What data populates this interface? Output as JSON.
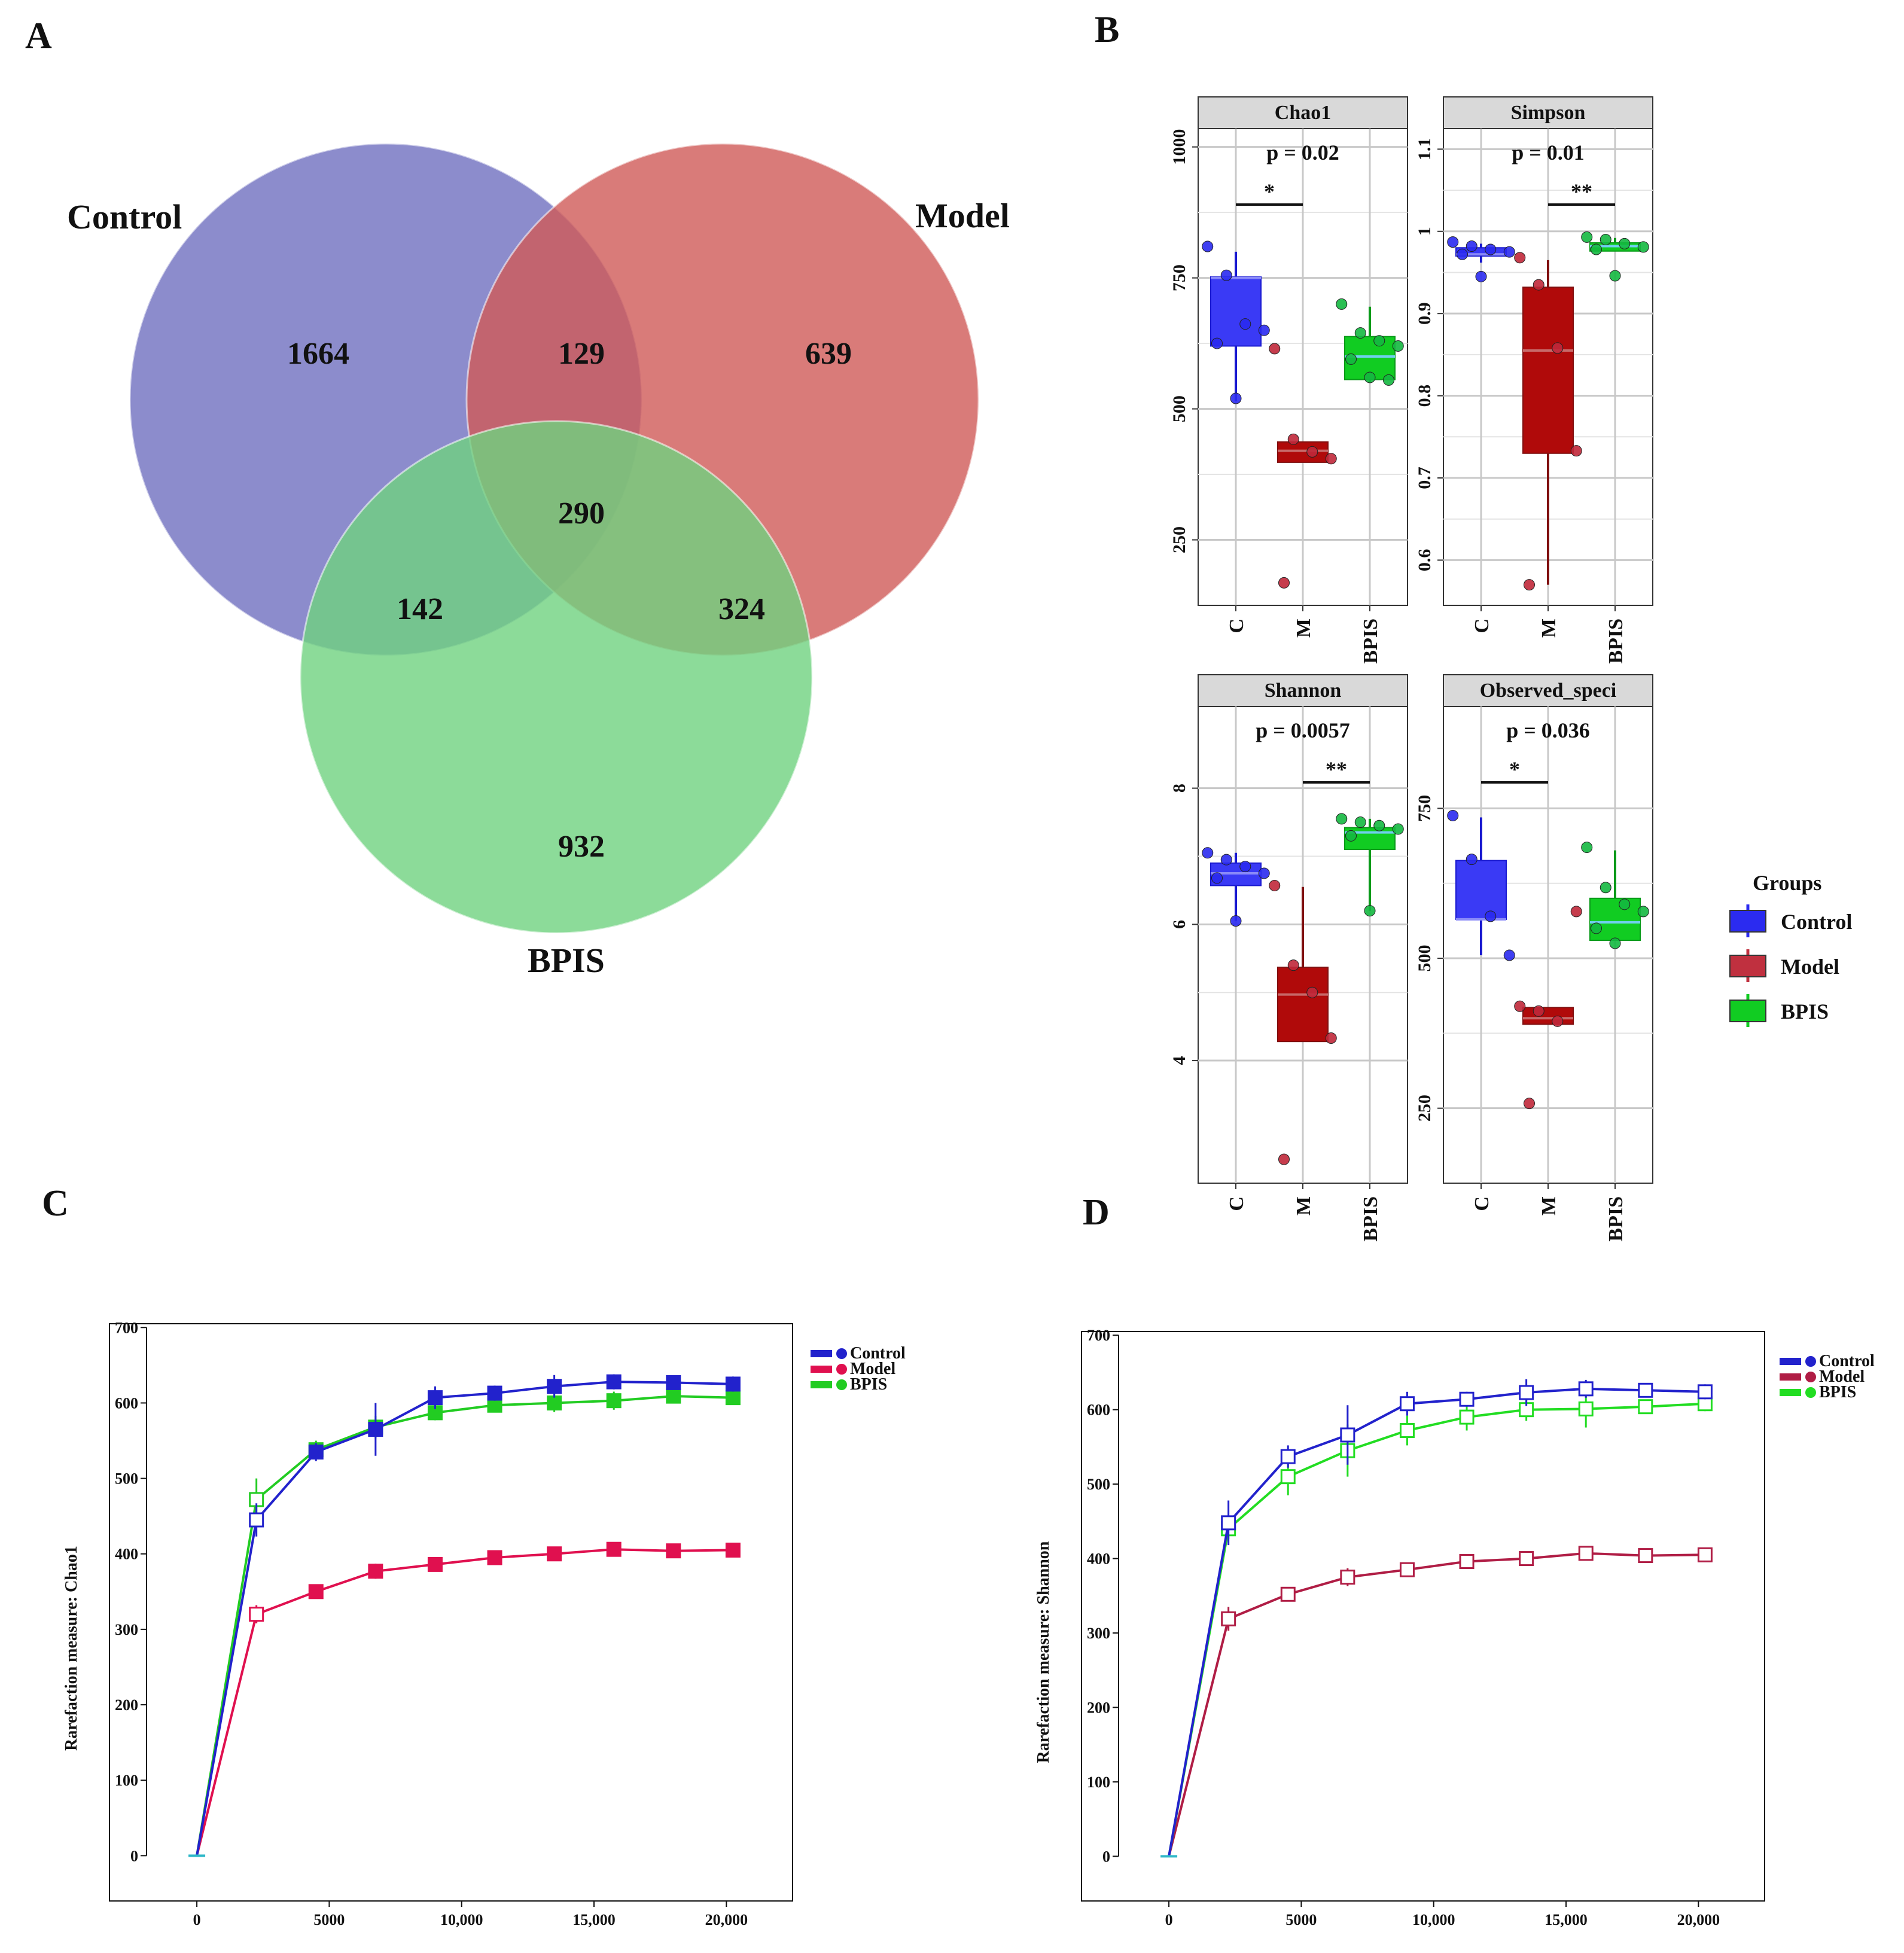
{
  "panels": {
    "A": "A",
    "B": "B",
    "C": "C",
    "D": "D"
  },
  "venn": {
    "sets": [
      {
        "name": "Control",
        "color": "#6f6fbf"
      },
      {
        "name": "Model",
        "color": "#cf5a58"
      },
      {
        "name": "BPIS",
        "color": "#6fd27f"
      }
    ],
    "counts": {
      "control_only": "1664",
      "control_model": "129",
      "model_only": "639",
      "all_three": "290",
      "control_bpis": "142",
      "model_bpis": "324",
      "bpis_only": "932"
    }
  },
  "chart_data": [
    {
      "type": "box",
      "id": "chao1",
      "title": "Chao1",
      "pvalue": "p = 0.02",
      "signif": {
        "label": "*",
        "between": [
          "C",
          "M"
        ]
      },
      "categories": [
        "C",
        "M",
        "BPIS"
      ],
      "yticks": [
        250,
        500,
        750,
        1000
      ],
      "ylim": [
        125,
        1035
      ],
      "boxes": [
        {
          "group": "C",
          "q1": 620,
          "median": 750,
          "q3": 752,
          "whisker_low": 515,
          "whisker_high": 800
        },
        {
          "group": "M",
          "q1": 398,
          "median": 420,
          "q3": 437,
          "whisker_low": 398,
          "whisker_high": 437
        },
        {
          "group": "BPIS",
          "q1": 556,
          "median": 600,
          "q3": 638,
          "whisker_low": 550,
          "whisker_high": 695
        }
      ],
      "points": [
        {
          "group": "C",
          "values": [
            810,
            755,
            662,
            650,
            625,
            520
          ]
        },
        {
          "group": "M",
          "values": [
            615,
            442,
            418,
            405,
            168
          ]
        },
        {
          "group": "BPIS",
          "values": [
            700,
            645,
            630,
            620,
            595,
            560,
            555
          ]
        }
      ]
    },
    {
      "type": "box",
      "id": "simpson",
      "title": "Simpson",
      "pvalue": "p = 0.01",
      "signif": {
        "label": "**",
        "between": [
          "M",
          "BPIS"
        ]
      },
      "categories": [
        "C",
        "M",
        "BPIS"
      ],
      "yticks": [
        0.6,
        0.7,
        0.8,
        0.9,
        1.0,
        1.1
      ],
      "ylim": [
        0.545,
        1.125
      ],
      "boxes": [
        {
          "group": "C",
          "q1": 0.97,
          "median": 0.972,
          "q3": 0.98,
          "whisker_low": 0.962,
          "whisker_high": 0.985
        },
        {
          "group": "M",
          "q1": 0.73,
          "median": 0.855,
          "q3": 0.932,
          "whisker_low": 0.57,
          "whisker_high": 0.965
        },
        {
          "group": "BPIS",
          "q1": 0.976,
          "median": 0.982,
          "q3": 0.986,
          "whisker_low": 0.976,
          "whisker_high": 0.992
        }
      ],
      "points": [
        {
          "group": "C",
          "values": [
            0.987,
            0.982,
            0.978,
            0.975,
            0.972,
            0.945
          ]
        },
        {
          "group": "M",
          "values": [
            0.968,
            0.935,
            0.858,
            0.733,
            0.57
          ]
        },
        {
          "group": "BPIS",
          "values": [
            0.993,
            0.99,
            0.985,
            0.981,
            0.978,
            0.946
          ]
        }
      ]
    },
    {
      "type": "box",
      "id": "shannon",
      "title": "Shannon",
      "pvalue": "p = 0.0057",
      "signif": {
        "label": "**",
        "between": [
          "M",
          "BPIS"
        ]
      },
      "categories": [
        "C",
        "M",
        "BPIS"
      ],
      "yticks": [
        4,
        6,
        8
      ],
      "ylim": [
        2.2,
        9.2
      ],
      "boxes": [
        {
          "group": "C",
          "q1": 6.57,
          "median": 6.75,
          "q3": 6.9,
          "whisker_low": 6.05,
          "whisker_high": 7.05
        },
        {
          "group": "M",
          "q1": 4.28,
          "median": 4.97,
          "q3": 5.37,
          "whisker_low": 4.28,
          "whisker_high": 6.55
        },
        {
          "group": "BPIS",
          "q1": 7.1,
          "median": 7.35,
          "q3": 7.42,
          "whisker_low": 6.2,
          "whisker_high": 7.55
        }
      ],
      "points": [
        {
          "group": "C",
          "values": [
            7.05,
            6.95,
            6.85,
            6.75,
            6.68,
            6.05
          ]
        },
        {
          "group": "M",
          "values": [
            6.57,
            5.4,
            5.0,
            4.33,
            2.55
          ]
        },
        {
          "group": "BPIS",
          "values": [
            7.55,
            7.5,
            7.45,
            7.4,
            7.3,
            6.2
          ]
        }
      ]
    },
    {
      "type": "box",
      "id": "observed",
      "title": "Observed_speci",
      "pvalue": "p = 0.036",
      "signif": {
        "label": "*",
        "between": [
          "C",
          "M"
        ]
      },
      "categories": [
        "C",
        "M",
        "BPIS"
      ],
      "yticks": [
        250,
        500,
        750
      ],
      "ylim": [
        125,
        920
      ],
      "boxes": [
        {
          "group": "C",
          "q1": 565,
          "median": 565,
          "q3": 663,
          "whisker_low": 505,
          "whisker_high": 735
        },
        {
          "group": "M",
          "q1": 390,
          "median": 400,
          "q3": 418,
          "whisker_low": 390,
          "whisker_high": 418
        },
        {
          "group": "BPIS",
          "q1": 530,
          "median": 560,
          "q3": 600,
          "whisker_low": 530,
          "whisker_high": 680
        }
      ],
      "points": [
        {
          "group": "C",
          "values": [
            738,
            665,
            570,
            505
          ]
        },
        {
          "group": "M",
          "values": [
            420,
            412,
            395,
            578,
            258
          ]
        },
        {
          "group": "BPIS",
          "values": [
            685,
            618,
            590,
            578,
            550,
            525
          ]
        }
      ]
    },
    {
      "type": "line",
      "id": "rarefaction_chao1",
      "ylabel": "Rarefaction measure: Chao1",
      "xticks": [
        0,
        5000,
        10000,
        15000,
        20000
      ],
      "xtick_labels": [
        "0",
        "5000",
        "10,000",
        "15,000",
        "20,000"
      ],
      "yticks": [
        0,
        100,
        200,
        300,
        400,
        500,
        600,
        700
      ],
      "xlim": [
        -3300,
        22500
      ],
      "ylim": [
        -60,
        705
      ],
      "x": [
        0,
        2250,
        4500,
        6750,
        9000,
        11250,
        13500,
        15750,
        18000,
        20250
      ],
      "series": [
        {
          "name": "Control",
          "color": "#2222cc",
          "values": [
            0,
            445,
            535,
            565,
            607,
            613,
            622,
            628,
            627,
            625
          ],
          "err": [
            0,
            22,
            12,
            35,
            15,
            10,
            15,
            10,
            8,
            10
          ]
        },
        {
          "name": "Model",
          "color": "#e0104f",
          "values": [
            0,
            320,
            350,
            377,
            386,
            395,
            400,
            406,
            404,
            405
          ],
          "err": [
            0,
            12,
            8,
            10,
            6,
            6,
            6,
            4,
            4,
            4
          ]
        },
        {
          "name": "BPIS",
          "color": "#22cc22",
          "values": [
            0,
            472,
            538,
            568,
            587,
            597,
            600,
            603,
            609,
            607
          ],
          "err": [
            0,
            28,
            12,
            15,
            10,
            8,
            12,
            12,
            8,
            6
          ]
        }
      ]
    },
    {
      "type": "line",
      "id": "rarefaction_shannon",
      "ylabel": "Rarefaction measure: Shannon",
      "xticks": [
        0,
        5000,
        10000,
        15000,
        20000
      ],
      "xtick_labels": [
        "0",
        "5000",
        "10,000",
        "15,000",
        "20,000"
      ],
      "yticks": [
        0,
        100,
        200,
        300,
        400,
        500,
        600,
        700
      ],
      "xlim": [
        -3300,
        22500
      ],
      "ylim": [
        -60,
        705
      ],
      "x": [
        0,
        2250,
        4500,
        6750,
        9000,
        11250,
        13500,
        15750,
        18000,
        20250
      ],
      "series": [
        {
          "name": "Control",
          "color": "#2222cc",
          "values": [
            0,
            448,
            537,
            566,
            608,
            614,
            623,
            628,
            626,
            624
          ],
          "err": [
            0,
            30,
            15,
            40,
            16,
            10,
            18,
            12,
            8,
            10
          ]
        },
        {
          "name": "Model",
          "color": "#b01d45",
          "values": [
            0,
            319,
            352,
            375,
            385,
            396,
            400,
            407,
            404,
            405
          ],
          "err": [
            0,
            16,
            8,
            12,
            6,
            6,
            6,
            4,
            4,
            4
          ]
        },
        {
          "name": "BPIS",
          "color": "#22dd22",
          "values": [
            0,
            440,
            510,
            545,
            572,
            590,
            600,
            601,
            604,
            608
          ],
          "err": [
            0,
            14,
            25,
            35,
            20,
            18,
            15,
            25,
            8,
            10
          ]
        }
      ]
    }
  ],
  "legend_b": {
    "title": "Groups",
    "items": [
      {
        "name": "Control",
        "color": "#2b2bf0"
      },
      {
        "name": "Model",
        "color": "#c0303f"
      },
      {
        "name": "BPIS",
        "color": "#11cc22"
      }
    ]
  },
  "legend_cd": {
    "items": [
      "Control",
      "Model",
      "BPIS"
    ]
  }
}
